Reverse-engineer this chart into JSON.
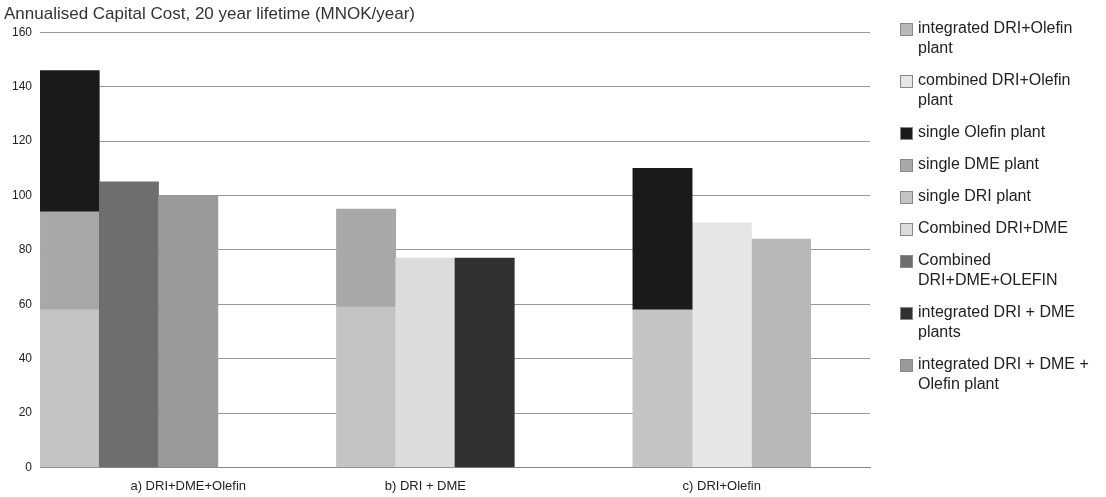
{
  "chart_data": {
    "type": "bar",
    "title": "Annualised Capital Cost, 20 year lifetime (MNOK/year)",
    "categories": [
      null,
      null,
      "a) DRI+DME+Olefin",
      null,
      null,
      null,
      "b) DRI + DME",
      null,
      null,
      null,
      null,
      "c) DRI+Olefin",
      null,
      null
    ],
    "stacked": true,
    "ylim": [
      0,
      160
    ],
    "yticks": [
      0,
      20,
      40,
      60,
      80,
      100,
      120,
      140,
      160
    ],
    "grid": "y",
    "legend": "right",
    "series": [
      {
        "name": "integrated DRI + DME + Olefin plant",
        "color": "#9a9a9a",
        "values": [
          null,
          null,
          100,
          null,
          null,
          null,
          null,
          null,
          null,
          null,
          null,
          null,
          null,
          null
        ]
      },
      {
        "name": "integrated DRI + DME plants",
        "color": "#303030",
        "values": [
          null,
          null,
          null,
          null,
          null,
          null,
          null,
          77,
          null,
          null,
          null,
          null,
          null,
          null
        ]
      },
      {
        "name": "Combined DRI+DME+OLEFIN",
        "color": "#6e6e6e",
        "values": [
          null,
          105,
          null,
          null,
          null,
          null,
          null,
          null,
          null,
          null,
          null,
          null,
          null,
          null
        ]
      },
      {
        "name": "Combined DRI+DME",
        "color": "#dcdcdc",
        "values": [
          null,
          null,
          null,
          null,
          null,
          null,
          77,
          null,
          null,
          null,
          null,
          null,
          null,
          null
        ]
      },
      {
        "name": "single DRI plant",
        "color": "#c4c4c4",
        "values": [
          58,
          null,
          null,
          null,
          null,
          59,
          null,
          null,
          null,
          null,
          58,
          null,
          null,
          null
        ]
      },
      {
        "name": "single DME plant",
        "color": "#a8a8a8",
        "values": [
          36,
          null,
          null,
          null,
          null,
          36,
          null,
          null,
          null,
          null,
          null,
          null,
          null,
          null
        ]
      },
      {
        "name": "single Olefin plant",
        "color": "#1a1a1a",
        "values": [
          52,
          null,
          null,
          null,
          null,
          null,
          null,
          null,
          null,
          null,
          52,
          null,
          null,
          null
        ]
      },
      {
        "name": "combined DRI+Olefin plant",
        "color": "#e6e6e6",
        "values": [
          null,
          null,
          null,
          null,
          null,
          null,
          null,
          null,
          null,
          null,
          null,
          90,
          null,
          null
        ]
      },
      {
        "name": "integrated DRI+Olefin plant",
        "color": "#b8b8b8",
        "values": [
          null,
          null,
          null,
          null,
          null,
          null,
          null,
          null,
          null,
          null,
          null,
          null,
          84,
          null
        ]
      }
    ]
  }
}
